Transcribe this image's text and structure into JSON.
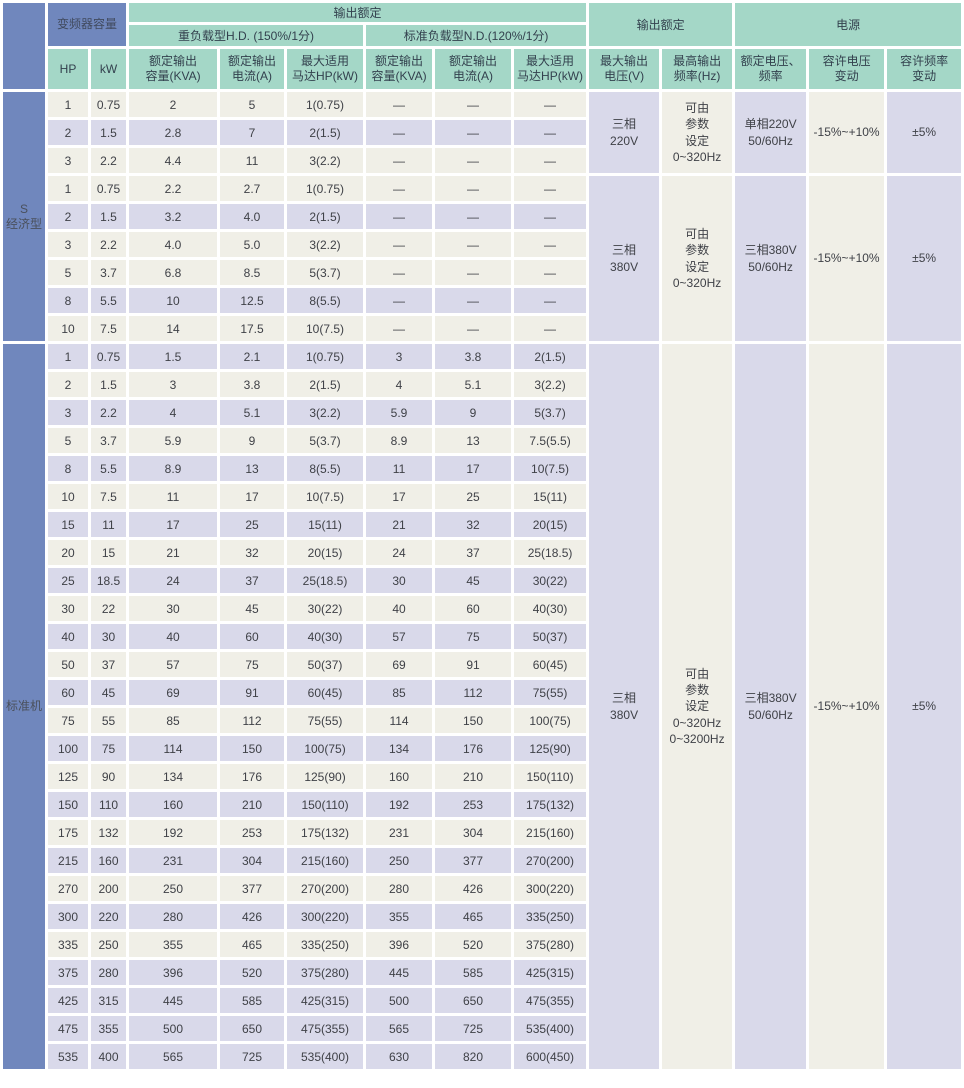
{
  "colors": {
    "header_teal": "#a4d7c7",
    "header_blue": "#7087bd",
    "row_cream": "#f0efe7",
    "row_lavender": "#d9d9ea"
  },
  "table": {
    "header": {
      "capacity_group": "变频器容量",
      "hp": "HP",
      "kw": "kW",
      "output_rating_left": "输出额定",
      "hd": "重负载型H.D. (150%/1分)",
      "nd": "标准负载型N.D.(120%/1分)",
      "rated_capacity": "额定输出\n容量(KVA)",
      "rated_current": "额定输出\n电流(A)",
      "max_motor": "最大适用\n马达HP(kW)",
      "output_rating_right": "输出额定",
      "power": "电源",
      "max_voltage": "最大输出\n电压(V)",
      "max_frequency": "最高输出\n频率(Hz)",
      "rated_voltage_freq": "额定电压、\n频率",
      "voltage_tolerance": "容许电压\n变动",
      "freq_tolerance": "容许频率\n变动"
    },
    "sections": [
      {
        "label": "S\n经济型",
        "rows": [
          {
            "cells": [
              "1",
              "0.75",
              "2",
              "5",
              "1(0.75)",
              "—",
              "—",
              "—"
            ],
            "shaded": false
          },
          {
            "cells": [
              "2",
              "1.5",
              "2.8",
              "7",
              "2(1.5)",
              "—",
              "—",
              "—"
            ],
            "shaded": true
          },
          {
            "cells": [
              "3",
              "2.2",
              "4.4",
              "11",
              "3(2.2)",
              "—",
              "—",
              "—"
            ],
            "shaded": false
          },
          {
            "cells": [
              "1",
              "0.75",
              "2.2",
              "2.7",
              "1(0.75)",
              "—",
              "—",
              "—"
            ],
            "shaded": false
          },
          {
            "cells": [
              "2",
              "1.5",
              "3.2",
              "4.0",
              "2(1.5)",
              "—",
              "—",
              "—"
            ],
            "shaded": true
          },
          {
            "cells": [
              "3",
              "2.2",
              "4.0",
              "5.0",
              "3(2.2)",
              "—",
              "—",
              "—"
            ],
            "shaded": false
          },
          {
            "cells": [
              "5",
              "3.7",
              "6.8",
              "8.5",
              "5(3.7)",
              "—",
              "—",
              "—"
            ],
            "shaded": false
          },
          {
            "cells": [
              "8",
              "5.5",
              "10",
              "12.5",
              "8(5.5)",
              "—",
              "—",
              "—"
            ],
            "shaded": true
          },
          {
            "cells": [
              "10",
              "7.5",
              "14",
              "17.5",
              "10(7.5)",
              "—",
              "—",
              "—"
            ],
            "shaded": false
          }
        ],
        "groups": [
          {
            "span": 3,
            "voltage": "三相\n220V",
            "freq": "可由\n参数\n设定\n0~320Hz",
            "rated": "单相220V\n50/60Hz",
            "volt_var": "-15%~+10%",
            "freq_var": "±5%"
          },
          {
            "span": 6,
            "voltage": "三相\n380V",
            "freq": "可由\n参数\n设定\n0~320Hz",
            "rated": "三相380V\n50/60Hz",
            "volt_var": "-15%~+10%",
            "freq_var": "±5%"
          }
        ]
      },
      {
        "label": "标准机",
        "rows": [
          {
            "cells": [
              "1",
              "0.75",
              "1.5",
              "2.1",
              "1(0.75)",
              "3",
              "3.8",
              "2(1.5)"
            ],
            "shaded": true
          },
          {
            "cells": [
              "2",
              "1.5",
              "3",
              "3.8",
              "2(1.5)",
              "4",
              "5.1",
              "3(2.2)"
            ],
            "shaded": false
          },
          {
            "cells": [
              "3",
              "2.2",
              "4",
              "5.1",
              "3(2.2)",
              "5.9",
              "9",
              "5(3.7)"
            ],
            "shaded": true
          },
          {
            "cells": [
              "5",
              "3.7",
              "5.9",
              "9",
              "5(3.7)",
              "8.9",
              "13",
              "7.5(5.5)"
            ],
            "shaded": false
          },
          {
            "cells": [
              "8",
              "5.5",
              "8.9",
              "13",
              "8(5.5)",
              "11",
              "17",
              "10(7.5)"
            ],
            "shaded": true
          },
          {
            "cells": [
              "10",
              "7.5",
              "11",
              "17",
              "10(7.5)",
              "17",
              "25",
              "15(11)"
            ],
            "shaded": false
          },
          {
            "cells": [
              "15",
              "11",
              "17",
              "25",
              "15(11)",
              "21",
              "32",
              "20(15)"
            ],
            "shaded": true
          },
          {
            "cells": [
              "20",
              "15",
              "21",
              "32",
              "20(15)",
              "24",
              "37",
              "25(18.5)"
            ],
            "shaded": false
          },
          {
            "cells": [
              "25",
              "18.5",
              "24",
              "37",
              "25(18.5)",
              "30",
              "45",
              "30(22)"
            ],
            "shaded": true
          },
          {
            "cells": [
              "30",
              "22",
              "30",
              "45",
              "30(22)",
              "40",
              "60",
              "40(30)"
            ],
            "shaded": false
          },
          {
            "cells": [
              "40",
              "30",
              "40",
              "60",
              "40(30)",
              "57",
              "75",
              "50(37)"
            ],
            "shaded": true
          },
          {
            "cells": [
              "50",
              "37",
              "57",
              "75",
              "50(37)",
              "69",
              "91",
              "60(45)"
            ],
            "shaded": false
          },
          {
            "cells": [
              "60",
              "45",
              "69",
              "91",
              "60(45)",
              "85",
              "112",
              "75(55)"
            ],
            "shaded": true
          },
          {
            "cells": [
              "75",
              "55",
              "85",
              "112",
              "75(55)",
              "114",
              "150",
              "100(75)"
            ],
            "shaded": false
          },
          {
            "cells": [
              "100",
              "75",
              "114",
              "150",
              "100(75)",
              "134",
              "176",
              "125(90)"
            ],
            "shaded": true
          },
          {
            "cells": [
              "125",
              "90",
              "134",
              "176",
              "125(90)",
              "160",
              "210",
              "150(110)"
            ],
            "shaded": false
          },
          {
            "cells": [
              "150",
              "110",
              "160",
              "210",
              "150(110)",
              "192",
              "253",
              "175(132)"
            ],
            "shaded": true
          },
          {
            "cells": [
              "175",
              "132",
              "192",
              "253",
              "175(132)",
              "231",
              "304",
              "215(160)"
            ],
            "shaded": false
          },
          {
            "cells": [
              "215",
              "160",
              "231",
              "304",
              "215(160)",
              "250",
              "377",
              "270(200)"
            ],
            "shaded": true
          },
          {
            "cells": [
              "270",
              "200",
              "250",
              "377",
              "270(200)",
              "280",
              "426",
              "300(220)"
            ],
            "shaded": false
          },
          {
            "cells": [
              "300",
              "220",
              "280",
              "426",
              "300(220)",
              "355",
              "465",
              "335(250)"
            ],
            "shaded": true
          },
          {
            "cells": [
              "335",
              "250",
              "355",
              "465",
              "335(250)",
              "396",
              "520",
              "375(280)"
            ],
            "shaded": false
          },
          {
            "cells": [
              "375",
              "280",
              "396",
              "520",
              "375(280)",
              "445",
              "585",
              "425(315)"
            ],
            "shaded": true
          },
          {
            "cells": [
              "425",
              "315",
              "445",
              "585",
              "425(315)",
              "500",
              "650",
              "475(355)"
            ],
            "shaded": true
          },
          {
            "cells": [
              "475",
              "355",
              "500",
              "650",
              "475(355)",
              "565",
              "725",
              "535(400)"
            ],
            "shaded": true
          },
          {
            "cells": [
              "535",
              "400",
              "565",
              "725",
              "535(400)",
              "630",
              "820",
              "600(450)"
            ],
            "shaded": true
          }
        ],
        "groups": [
          {
            "span": 26,
            "voltage": "三相\n380V",
            "freq": "可由\n参数\n设定\n0~320Hz\n0~3200Hz",
            "rated": "三相380V\n50/60Hz",
            "volt_var": "-15%~+10%",
            "freq_var": "±5%"
          }
        ]
      }
    ]
  }
}
